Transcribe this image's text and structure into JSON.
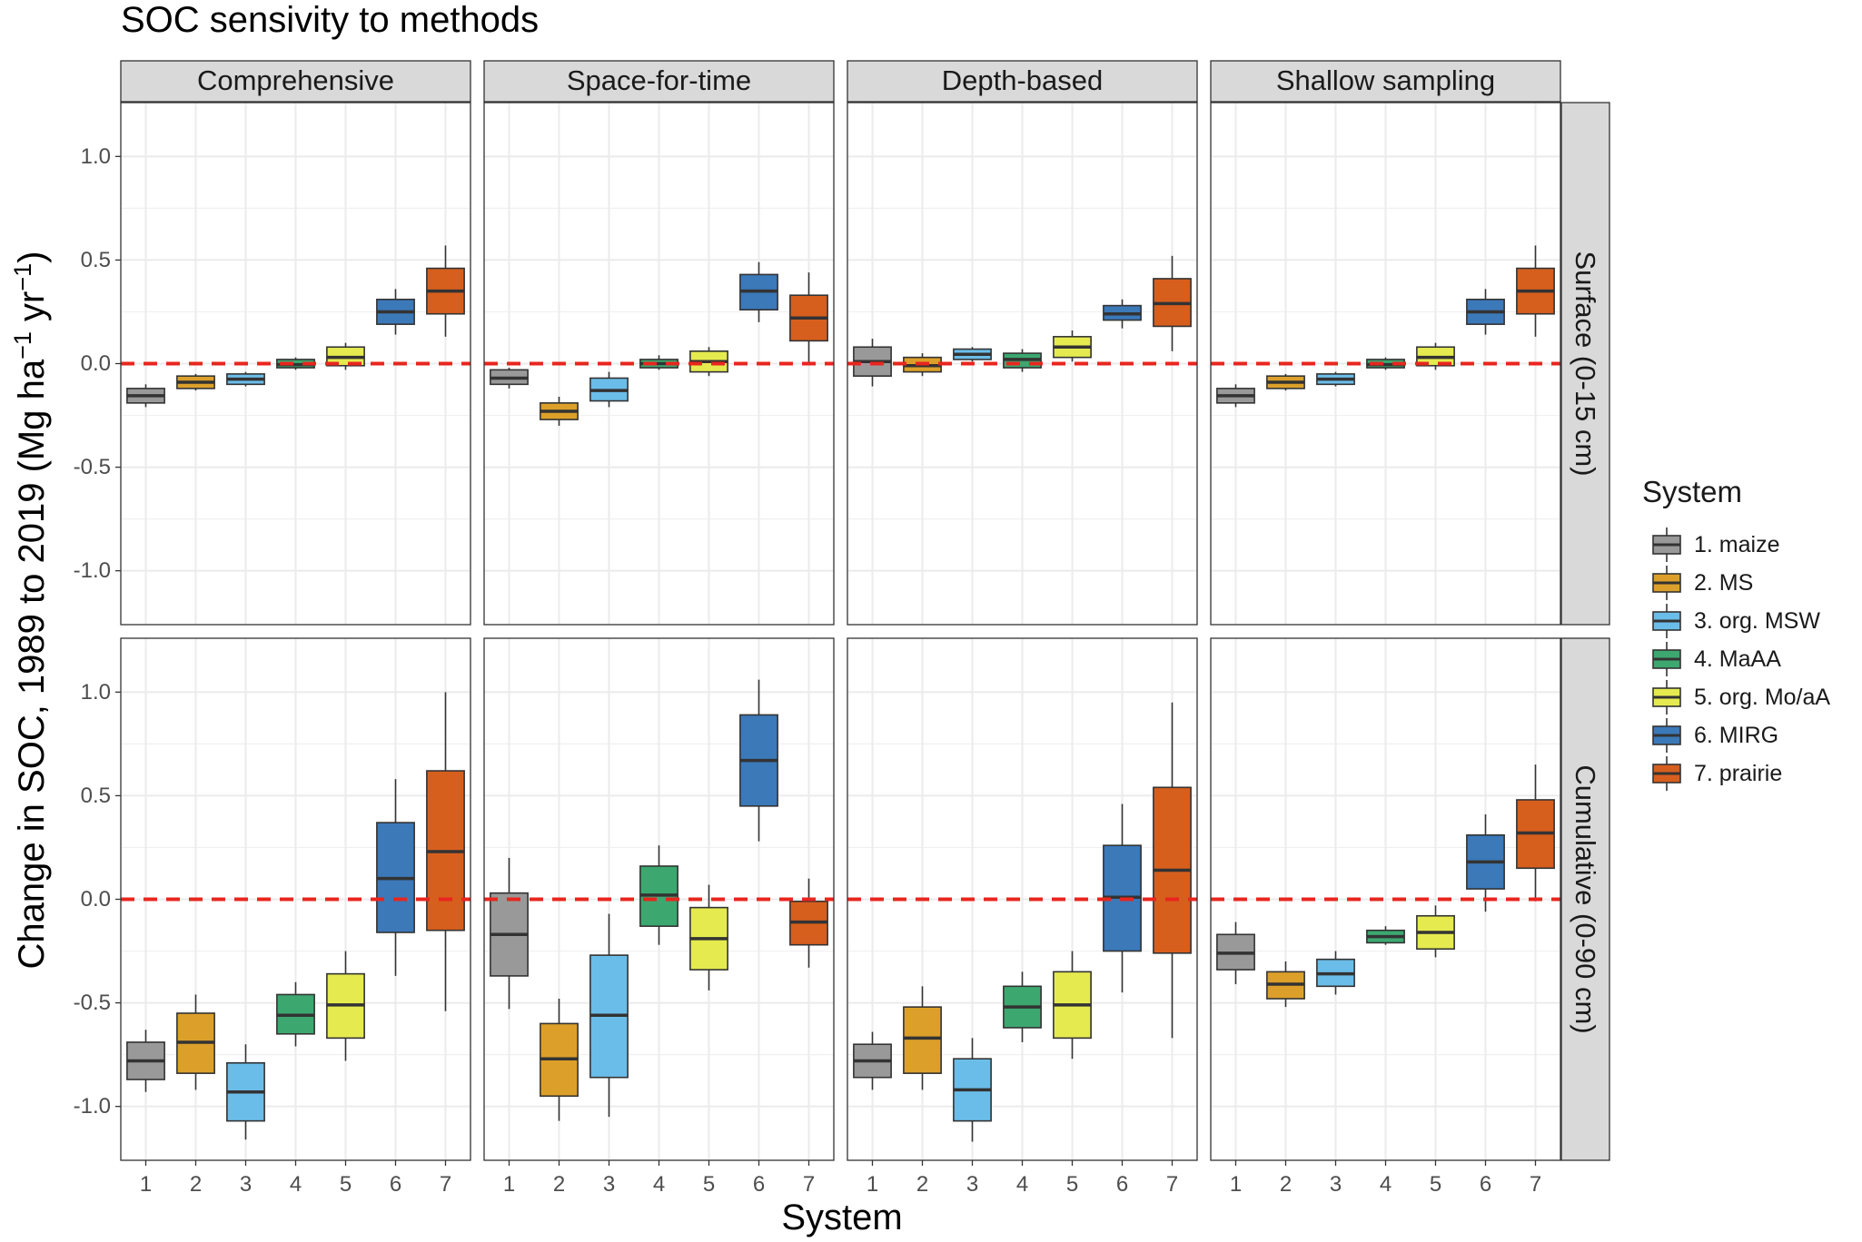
{
  "chart_data": {
    "type": "box",
    "title": "SOC sensivity to methods",
    "xlabel": "System",
    "ylabel_main": "Change in SOC, 1989 to 2019 (Mg ha",
    "ylabel_sup1": "−1",
    "ylabel_mid": " yr",
    "ylabel_sup2": "−1",
    "ylabel_end": ")",
    "ylim": [
      -1.26,
      1.26
    ],
    "yticks": [
      1.0,
      0.5,
      0.0,
      -0.5,
      -1.0
    ],
    "ytick_labels": [
      "1.0",
      "0.5",
      "0.0",
      "-0.5",
      "-1.0"
    ],
    "categories": [
      "1",
      "2",
      "3",
      "4",
      "5",
      "6",
      "7"
    ],
    "reference_line": {
      "y": 0,
      "color": "#e8261e",
      "style": "dashed"
    },
    "grid": true,
    "legend": {
      "title": "System",
      "placement": "right",
      "entries": [
        "1. maize",
        "2. MS",
        "3. org. MSW",
        "4. MaAA",
        "5. org. Mo/aA",
        "6. MIRG",
        "7. prairie"
      ]
    },
    "series_colors": [
      "#999999",
      "#dca02a",
      "#6bbde9",
      "#3ca870",
      "#e5eb4f",
      "#3b79b9",
      "#d65f1e"
    ],
    "column_facets": [
      "Comprehensive",
      "Space-for-time",
      "Depth-based",
      "Shallow sampling"
    ],
    "row_facets": [
      "Surface (0-15 cm)",
      "Cumulative (0-90 cm)"
    ],
    "panels": [
      {
        "row": 0,
        "col": 0,
        "boxes": [
          {
            "system": "1",
            "min": -0.21,
            "q1": -0.19,
            "median": -0.155,
            "q3": -0.12,
            "max": -0.1
          },
          {
            "system": "2",
            "min": -0.13,
            "q1": -0.12,
            "median": -0.09,
            "q3": -0.06,
            "max": -0.05
          },
          {
            "system": "3",
            "min": -0.11,
            "q1": -0.1,
            "median": -0.075,
            "q3": -0.05,
            "max": -0.04
          },
          {
            "system": "4",
            "min": -0.03,
            "q1": -0.02,
            "median": -0.005,
            "q3": 0.02,
            "max": 0.03
          },
          {
            "system": "5",
            "min": -0.03,
            "q1": -0.01,
            "median": 0.03,
            "q3": 0.08,
            "max": 0.1
          },
          {
            "system": "6",
            "min": 0.14,
            "q1": 0.19,
            "median": 0.25,
            "q3": 0.31,
            "max": 0.36
          },
          {
            "system": "7",
            "min": 0.13,
            "q1": 0.24,
            "median": 0.35,
            "q3": 0.46,
            "max": 0.57
          }
        ]
      },
      {
        "row": 0,
        "col": 1,
        "boxes": [
          {
            "system": "1",
            "min": -0.12,
            "q1": -0.1,
            "median": -0.07,
            "q3": -0.03,
            "max": -0.02
          },
          {
            "system": "2",
            "min": -0.3,
            "q1": -0.27,
            "median": -0.23,
            "q3": -0.19,
            "max": -0.16
          },
          {
            "system": "3",
            "min": -0.21,
            "q1": -0.18,
            "median": -0.13,
            "q3": -0.07,
            "max": -0.04
          },
          {
            "system": "4",
            "min": -0.03,
            "q1": -0.02,
            "median": 0.0,
            "q3": 0.02,
            "max": 0.04
          },
          {
            "system": "5",
            "min": -0.06,
            "q1": -0.04,
            "median": 0.01,
            "q3": 0.06,
            "max": 0.08
          },
          {
            "system": "6",
            "min": 0.2,
            "q1": 0.26,
            "median": 0.35,
            "q3": 0.43,
            "max": 0.49
          },
          {
            "system": "7",
            "min": 0.0,
            "q1": 0.11,
            "median": 0.22,
            "q3": 0.33,
            "max": 0.44
          }
        ]
      },
      {
        "row": 0,
        "col": 2,
        "boxes": [
          {
            "system": "1",
            "min": -0.11,
            "q1": -0.06,
            "median": 0.01,
            "q3": 0.08,
            "max": 0.12
          },
          {
            "system": "2",
            "min": -0.06,
            "q1": -0.04,
            "median": -0.01,
            "q3": 0.03,
            "max": 0.05
          },
          {
            "system": "3",
            "min": 0.01,
            "q1": 0.02,
            "median": 0.045,
            "q3": 0.07,
            "max": 0.08
          },
          {
            "system": "4",
            "min": -0.04,
            "q1": -0.02,
            "median": 0.02,
            "q3": 0.05,
            "max": 0.07
          },
          {
            "system": "5",
            "min": 0.01,
            "q1": 0.03,
            "median": 0.08,
            "q3": 0.13,
            "max": 0.16
          },
          {
            "system": "6",
            "min": 0.17,
            "q1": 0.21,
            "median": 0.24,
            "q3": 0.28,
            "max": 0.31
          },
          {
            "system": "7",
            "min": 0.06,
            "q1": 0.18,
            "median": 0.29,
            "q3": 0.41,
            "max": 0.52
          }
        ]
      },
      {
        "row": 0,
        "col": 3,
        "boxes": [
          {
            "system": "1",
            "min": -0.21,
            "q1": -0.19,
            "median": -0.155,
            "q3": -0.12,
            "max": -0.1
          },
          {
            "system": "2",
            "min": -0.13,
            "q1": -0.12,
            "median": -0.09,
            "q3": -0.06,
            "max": -0.05
          },
          {
            "system": "3",
            "min": -0.11,
            "q1": -0.1,
            "median": -0.075,
            "q3": -0.05,
            "max": -0.04
          },
          {
            "system": "4",
            "min": -0.03,
            "q1": -0.02,
            "median": -0.005,
            "q3": 0.02,
            "max": 0.03
          },
          {
            "system": "5",
            "min": -0.03,
            "q1": -0.01,
            "median": 0.03,
            "q3": 0.08,
            "max": 0.1
          },
          {
            "system": "6",
            "min": 0.14,
            "q1": 0.19,
            "median": 0.25,
            "q3": 0.31,
            "max": 0.36
          },
          {
            "system": "7",
            "min": 0.13,
            "q1": 0.24,
            "median": 0.35,
            "q3": 0.46,
            "max": 0.57
          }
        ]
      },
      {
        "row": 1,
        "col": 0,
        "boxes": [
          {
            "system": "1",
            "min": -0.93,
            "q1": -0.87,
            "median": -0.78,
            "q3": -0.69,
            "max": -0.63
          },
          {
            "system": "2",
            "min": -0.92,
            "q1": -0.84,
            "median": -0.69,
            "q3": -0.55,
            "max": -0.46
          },
          {
            "system": "3",
            "min": -1.16,
            "q1": -1.07,
            "median": -0.93,
            "q3": -0.79,
            "max": -0.7
          },
          {
            "system": "4",
            "min": -0.71,
            "q1": -0.65,
            "median": -0.56,
            "q3": -0.46,
            "max": -0.4
          },
          {
            "system": "5",
            "min": -0.78,
            "q1": -0.67,
            "median": -0.51,
            "q3": -0.36,
            "max": -0.25
          },
          {
            "system": "6",
            "min": -0.37,
            "q1": -0.16,
            "median": 0.1,
            "q3": 0.37,
            "max": 0.58
          },
          {
            "system": "7",
            "min": -0.54,
            "q1": -0.15,
            "median": 0.23,
            "q3": 0.62,
            "max": 1.0
          }
        ]
      },
      {
        "row": 1,
        "col": 1,
        "boxes": [
          {
            "system": "1",
            "min": -0.53,
            "q1": -0.37,
            "median": -0.17,
            "q3": 0.03,
            "max": 0.2
          },
          {
            "system": "2",
            "min": -1.07,
            "q1": -0.95,
            "median": -0.77,
            "q3": -0.6,
            "max": -0.48
          },
          {
            "system": "3",
            "min": -1.05,
            "q1": -0.86,
            "median": -0.56,
            "q3": -0.27,
            "max": -0.07
          },
          {
            "system": "4",
            "min": -0.22,
            "q1": -0.13,
            "median": 0.02,
            "q3": 0.16,
            "max": 0.26
          },
          {
            "system": "5",
            "min": -0.44,
            "q1": -0.34,
            "median": -0.19,
            "q3": -0.04,
            "max": 0.07
          },
          {
            "system": "6",
            "min": 0.28,
            "q1": 0.45,
            "median": 0.67,
            "q3": 0.89,
            "max": 1.06
          },
          {
            "system": "7",
            "min": -0.33,
            "q1": -0.22,
            "median": -0.11,
            "q3": -0.01,
            "max": 0.1
          }
        ]
      },
      {
        "row": 1,
        "col": 2,
        "boxes": [
          {
            "system": "1",
            "min": -0.92,
            "q1": -0.86,
            "median": -0.78,
            "q3": -0.7,
            "max": -0.64
          },
          {
            "system": "2",
            "min": -0.92,
            "q1": -0.84,
            "median": -0.67,
            "q3": -0.52,
            "max": -0.42
          },
          {
            "system": "3",
            "min": -1.17,
            "q1": -1.07,
            "median": -0.92,
            "q3": -0.77,
            "max": -0.67
          },
          {
            "system": "4",
            "min": -0.69,
            "q1": -0.62,
            "median": -0.52,
            "q3": -0.42,
            "max": -0.35
          },
          {
            "system": "5",
            "min": -0.77,
            "q1": -0.67,
            "median": -0.51,
            "q3": -0.35,
            "max": -0.25
          },
          {
            "system": "6",
            "min": -0.45,
            "q1": -0.25,
            "median": 0.01,
            "q3": 0.26,
            "max": 0.46
          },
          {
            "system": "7",
            "min": -0.67,
            "q1": -0.26,
            "median": 0.14,
            "q3": 0.54,
            "max": 0.95
          }
        ]
      },
      {
        "row": 1,
        "col": 3,
        "boxes": [
          {
            "system": "1",
            "min": -0.41,
            "q1": -0.34,
            "median": -0.26,
            "q3": -0.17,
            "max": -0.11
          },
          {
            "system": "2",
            "min": -0.52,
            "q1": -0.48,
            "median": -0.41,
            "q3": -0.35,
            "max": -0.3
          },
          {
            "system": "3",
            "min": -0.46,
            "q1": -0.42,
            "median": -0.36,
            "q3": -0.29,
            "max": -0.25
          },
          {
            "system": "4",
            "min": -0.22,
            "q1": -0.21,
            "median": -0.18,
            "q3": -0.15,
            "max": -0.13
          },
          {
            "system": "5",
            "min": -0.28,
            "q1": -0.24,
            "median": -0.16,
            "q3": -0.08,
            "max": -0.03
          },
          {
            "system": "6",
            "min": -0.06,
            "q1": 0.05,
            "median": 0.18,
            "q3": 0.31,
            "max": 0.41
          },
          {
            "system": "7",
            "min": -0.01,
            "q1": 0.15,
            "median": 0.32,
            "q3": 0.48,
            "max": 0.65
          }
        ]
      }
    ]
  }
}
